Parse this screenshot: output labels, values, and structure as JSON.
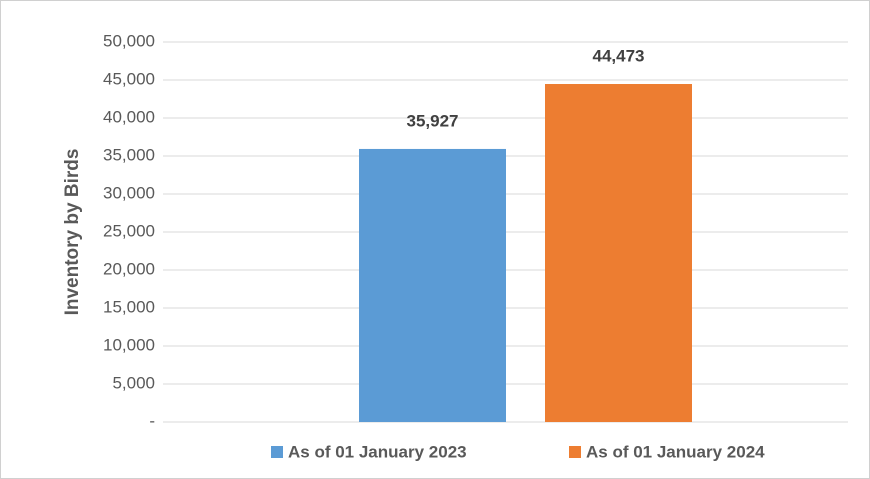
{
  "chart_data": {
    "type": "bar",
    "y_label": "Inventory by Birds",
    "categories": [
      null
    ],
    "series": [
      {
        "name": "As of 01 January 2023",
        "color": "#5b9bd5",
        "values": [
          35927
        ],
        "value_labels": [
          "35,927"
        ]
      },
      {
        "name": "As of 01 January 2024",
        "color": "#ed7d31",
        "values": [
          44473
        ],
        "value_labels": [
          "44,473"
        ]
      }
    ],
    "ylim": [
      0,
      50000
    ],
    "yticks": [
      {
        "value": 0,
        "label": "-"
      },
      {
        "value": 5000,
        "label": "5,000"
      },
      {
        "value": 10000,
        "label": "10,000"
      },
      {
        "value": 15000,
        "label": "15,000"
      },
      {
        "value": 20000,
        "label": "20,000"
      },
      {
        "value": 25000,
        "label": "25,000"
      },
      {
        "value": 30000,
        "label": "30,000"
      },
      {
        "value": 35000,
        "label": "35,000"
      },
      {
        "value": 40000,
        "label": "40,000"
      },
      {
        "value": 45000,
        "label": "45,000"
      },
      {
        "value": 50000,
        "label": "50,000"
      }
    ],
    "grid": true,
    "legend": "bottom"
  }
}
